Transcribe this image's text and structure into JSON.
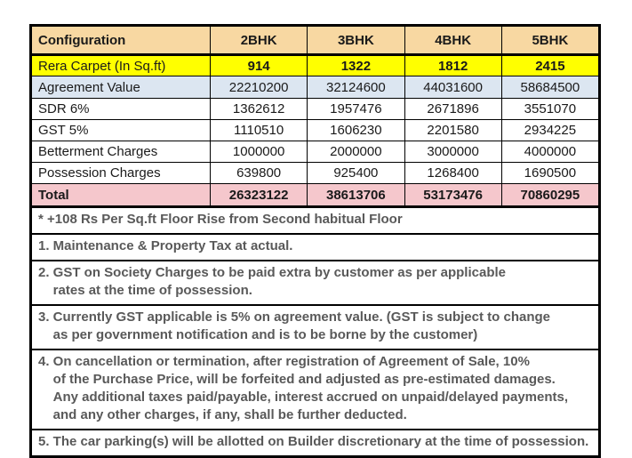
{
  "colors": {
    "header_bg": "#F8D8A2",
    "rera_bg": "#FFFF00",
    "agreement_bg": "#DCE6F1",
    "total_bg": "#F5C7CC",
    "note_text": "#595959",
    "border": "#000000"
  },
  "table": {
    "header": [
      "Configuration",
      "2BHK",
      "3BHK",
      "4BHK",
      "5BHK"
    ],
    "rows": [
      {
        "label": "Rera Carpet (In Sq.ft)",
        "values": [
          "914",
          "1322",
          "1812",
          "2415"
        ]
      },
      {
        "label": "Agreement Value",
        "values": [
          "22210200",
          "32124600",
          "44031600",
          "58684500"
        ]
      },
      {
        "label": "SDR 6%",
        "values": [
          "1362612",
          "1957476",
          "2671896",
          "3551070"
        ]
      },
      {
        "label": "GST 5%",
        "values": [
          "1110510",
          "1606230",
          "2201580",
          "2934225"
        ]
      },
      {
        "label": "Betterment Charges",
        "values": [
          "1000000",
          "2000000",
          "3000000",
          "4000000"
        ]
      },
      {
        "label": "Possession Charges",
        "values": [
          "639800",
          "925400",
          "1268400",
          "1690500"
        ]
      },
      {
        "label": "Total",
        "values": [
          "26323122",
          "38613706",
          "53173476",
          "70860295"
        ]
      }
    ]
  },
  "notes": {
    "floor_rise": [
      "* +108 Rs Per Sq.ft Floor Rise from Second habitual Floor"
    ],
    "note1": [
      "1. Maintenance & Property Tax at actual."
    ],
    "note2": [
      "2. GST on Society Charges to be paid extra by customer as per applicable",
      "    rates at the time of possession."
    ],
    "note3": [
      "3. Currently GST applicable is 5% on agreement value. (GST is subject to change",
      "    as per government notification and is to be borne by the customer)"
    ],
    "note4": [
      "4. On cancellation or termination, after registration of Agreement of Sale, 10%",
      "    of the Purchase Price, will be forfeited and adjusted as pre-estimated damages.",
      "    Any additional taxes paid/payable, interest accrued on unpaid/delayed payments,",
      "    and any other charges, if any, shall be further deducted."
    ],
    "note5": [
      "5. The car parking(s) will be allotted on Builder discretionary at the time of possession."
    ]
  }
}
